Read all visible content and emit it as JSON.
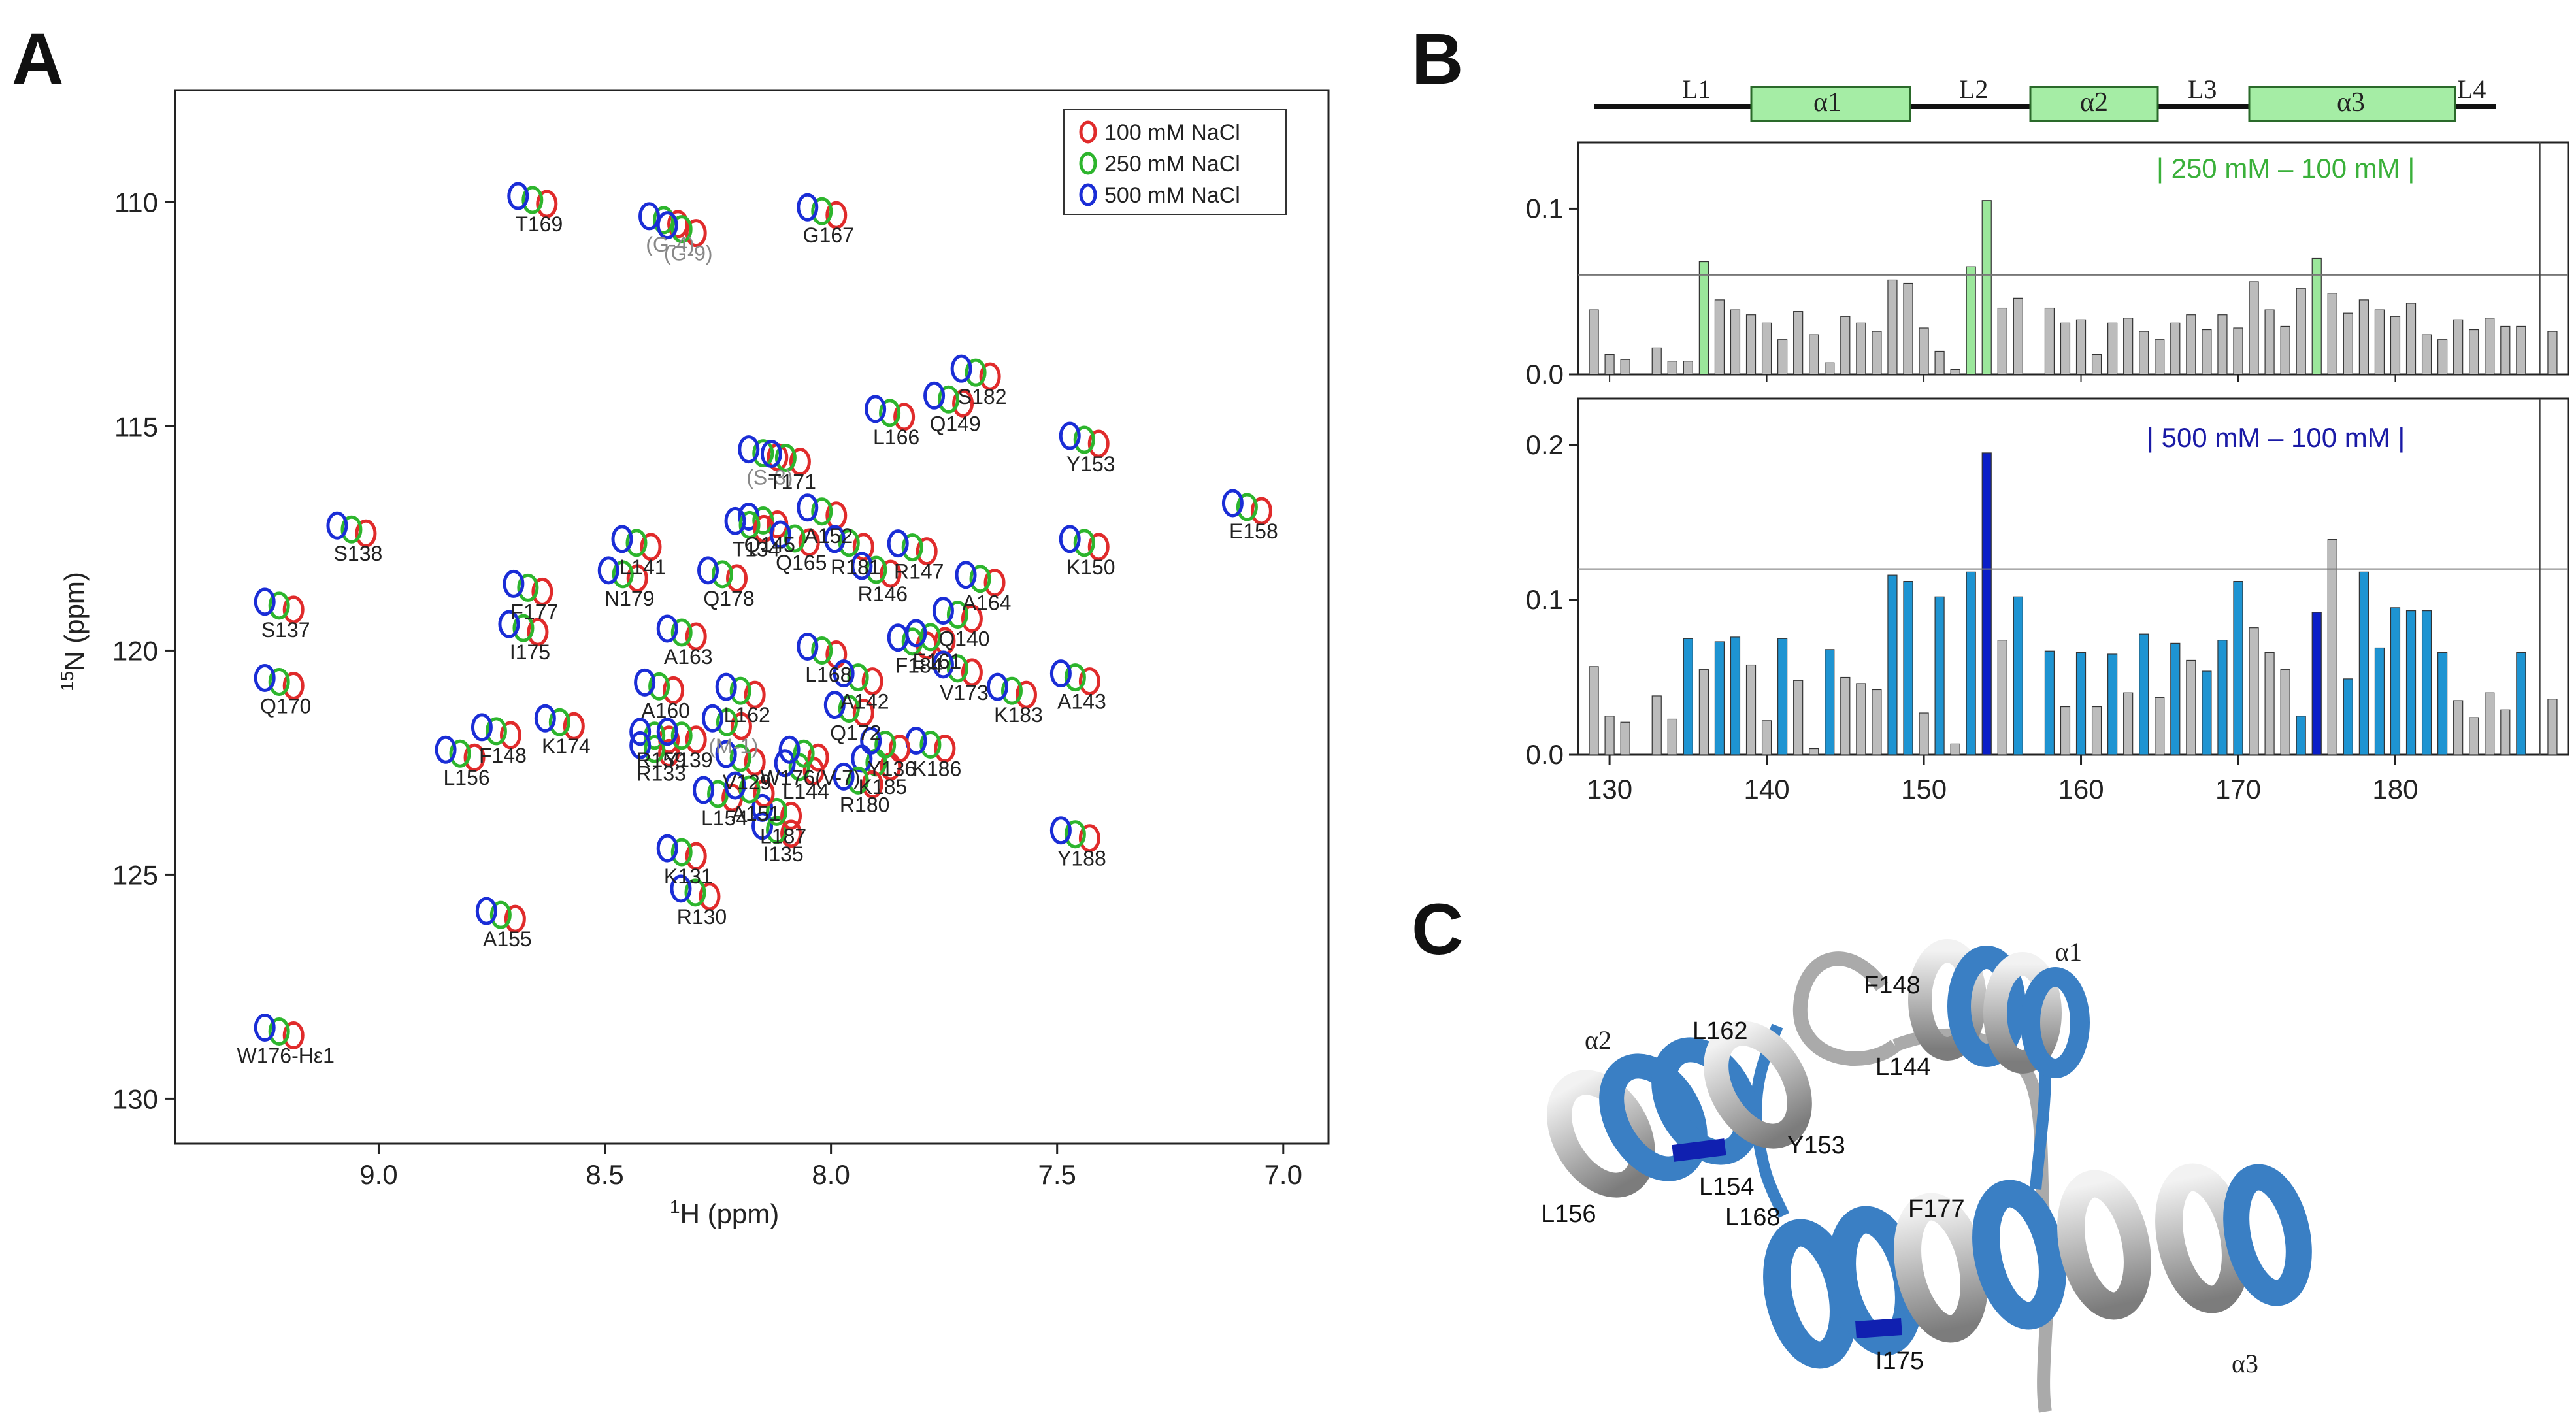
{
  "panels": {
    "a": "A",
    "b": "B",
    "c": "C"
  },
  "chart_data": [
    {
      "type": "scatter",
      "title": "",
      "xlabel_iso": "1",
      "xlabel": "H  (ppm)",
      "ylabel_iso": "15",
      "ylabel": "N  (ppm)",
      "xlim": [
        9.45,
        6.9
      ],
      "ylim": [
        131.0,
        107.5
      ],
      "xticks": [
        "9.0",
        "8.5",
        "8.0",
        "7.5",
        "7.0"
      ],
      "yticks": [
        "110",
        "115",
        "120",
        "125",
        "130"
      ],
      "legend": [
        "100 mM NaCl",
        "250 mM NaCl",
        "500 mM NaCl"
      ],
      "colors": {
        "100": "#e02b2b",
        "250": "#2db52d",
        "500": "#1a2dd6"
      },
      "peaks": [
        {
          "l": "T169",
          "x": 8.66,
          "y": 109.95
        },
        {
          "l": "(G-4)",
          "x": 8.37,
          "y": 110.4,
          "g": true
        },
        {
          "l": "(G-9)",
          "x": 8.33,
          "y": 110.6,
          "g": true
        },
        {
          "l": "G167",
          "x": 8.02,
          "y": 110.2
        },
        {
          "l": "L166",
          "x": 7.87,
          "y": 114.7
        },
        {
          "l": "S182",
          "x": 7.68,
          "y": 113.8
        },
        {
          "l": "Q149",
          "x": 7.74,
          "y": 114.4
        },
        {
          "l": "Y153",
          "x": 7.44,
          "y": 115.3
        },
        {
          "l": "(S-3)",
          "x": 8.15,
          "y": 115.6,
          "g": true
        },
        {
          "l": "T171",
          "x": 8.1,
          "y": 115.7
        },
        {
          "l": "S138",
          "x": 9.06,
          "y": 117.3
        },
        {
          "l": "E158",
          "x": 7.08,
          "y": 116.8
        },
        {
          "l": "L141",
          "x": 8.43,
          "y": 117.6
        },
        {
          "l": "Q145",
          "x": 8.15,
          "y": 117.1
        },
        {
          "l": "T134",
          "x": 8.18,
          "y": 117.2
        },
        {
          "l": "A152",
          "x": 8.02,
          "y": 116.9
        },
        {
          "l": "R181",
          "x": 7.96,
          "y": 117.6
        },
        {
          "l": "R147",
          "x": 7.82,
          "y": 117.7
        },
        {
          "l": "N179",
          "x": 8.46,
          "y": 118.3
        },
        {
          "l": "Q178",
          "x": 8.24,
          "y": 118.3
        },
        {
          "l": "Q165",
          "x": 8.08,
          "y": 117.5
        },
        {
          "l": "R146",
          "x": 7.9,
          "y": 118.2
        },
        {
          "l": "A164",
          "x": 7.67,
          "y": 118.4
        },
        {
          "l": "K150",
          "x": 7.44,
          "y": 117.6
        },
        {
          "l": "F177",
          "x": 8.67,
          "y": 118.6
        },
        {
          "l": "S137",
          "x": 9.22,
          "y": 119.0
        },
        {
          "l": "I175",
          "x": 8.68,
          "y": 119.5
        },
        {
          "l": "A163",
          "x": 8.33,
          "y": 119.6
        },
        {
          "l": "L168",
          "x": 8.02,
          "y": 120.0
        },
        {
          "l": "F184",
          "x": 7.82,
          "y": 119.8
        },
        {
          "l": "Q140",
          "x": 7.72,
          "y": 119.2
        },
        {
          "l": "E161",
          "x": 7.78,
          "y": 119.7
        },
        {
          "l": "Q170",
          "x": 9.22,
          "y": 120.7
        },
        {
          "l": "A160",
          "x": 8.38,
          "y": 120.8
        },
        {
          "l": "L162",
          "x": 8.2,
          "y": 120.9
        },
        {
          "l": "A142",
          "x": 7.94,
          "y": 120.6
        },
        {
          "l": "V173",
          "x": 7.72,
          "y": 120.4
        },
        {
          "l": "A143",
          "x": 7.46,
          "y": 120.6
        },
        {
          "l": "K174",
          "x": 8.6,
          "y": 121.6
        },
        {
          "l": "(M-1)",
          "x": 8.23,
          "y": 121.6,
          "g": true
        },
        {
          "l": "Q172",
          "x": 7.96,
          "y": 121.3
        },
        {
          "l": "K183",
          "x": 7.6,
          "y": 120.9
        },
        {
          "l": "F148",
          "x": 8.74,
          "y": 121.8
        },
        {
          "l": "R159",
          "x": 8.39,
          "y": 121.9
        },
        {
          "l": "K186",
          "x": 7.78,
          "y": 122.1
        },
        {
          "l": "R133",
          "x": 8.39,
          "y": 122.2
        },
        {
          "l": "Y139",
          "x": 8.33,
          "y": 121.9
        },
        {
          "l": "V129",
          "x": 8.2,
          "y": 122.4
        },
        {
          "l": "K185",
          "x": 7.9,
          "y": 122.5
        },
        {
          "l": "L156",
          "x": 8.82,
          "y": 122.3
        },
        {
          "l": "Y136",
          "x": 7.88,
          "y": 122.1
        },
        {
          "l": "L154",
          "x": 8.25,
          "y": 123.2
        },
        {
          "l": "R180",
          "x": 7.94,
          "y": 122.9
        },
        {
          "l": "K131",
          "x": 8.33,
          "y": 124.5
        },
        {
          "l": "L144",
          "x": 8.07,
          "y": 122.6
        },
        {
          "l": "I135",
          "x": 8.12,
          "y": 124.0
        },
        {
          "l": "Y188",
          "x": 7.46,
          "y": 124.1
        },
        {
          "l": "W176(V-7)",
          "x": 8.06,
          "y": 122.3
        },
        {
          "l": "L187",
          "x": 8.12,
          "y": 123.6
        },
        {
          "l": "R130",
          "x": 8.3,
          "y": 125.4
        },
        {
          "l": "A151",
          "x": 8.18,
          "y": 123.1
        },
        {
          "l": "A155",
          "x": 8.73,
          "y": 125.9
        },
        {
          "l": "W176-Hε1",
          "x": 9.22,
          "y": 128.5
        }
      ]
    },
    {
      "type": "bar",
      "title": "| 250 mM – 100 mM |",
      "xlim": [
        128,
        191
      ],
      "ylim": [
        0,
        0.14
      ],
      "yticks": [
        "0.1",
        "0.0"
      ],
      "threshold": 0.06,
      "x": [
        129,
        130,
        131,
        133,
        134,
        135,
        136,
        137,
        138,
        139,
        140,
        141,
        142,
        143,
        144,
        145,
        146,
        147,
        148,
        149,
        150,
        151,
        152,
        153,
        154,
        155,
        156,
        158,
        159,
        160,
        161,
        162,
        163,
        164,
        165,
        166,
        167,
        168,
        169,
        170,
        171,
        172,
        173,
        174,
        175,
        176,
        177,
        178,
        179,
        180,
        181,
        182,
        183,
        184,
        185,
        186,
        187,
        188,
        190
      ],
      "values": [
        0.039,
        0.012,
        0.009,
        0.016,
        0.008,
        0.008,
        0.068,
        0.045,
        0.039,
        0.036,
        0.031,
        0.021,
        0.038,
        0.024,
        0.007,
        0.035,
        0.031,
        0.026,
        0.057,
        0.055,
        0.028,
        0.014,
        0.003,
        0.065,
        0.105,
        0.04,
        0.046,
        0.04,
        0.031,
        0.033,
        0.012,
        0.031,
        0.034,
        0.026,
        0.021,
        0.031,
        0.036,
        0.027,
        0.036,
        0.028,
        0.056,
        0.039,
        0.029,
        0.052,
        0.07,
        0.049,
        0.037,
        0.045,
        0.039,
        0.035,
        0.043,
        0.024,
        0.021,
        0.033,
        0.027,
        0.034,
        0.029,
        0.029,
        0.026
      ],
      "highlight": [
        136,
        153,
        154,
        175
      ]
    },
    {
      "type": "bar",
      "title": "| 500 mM – 100 mM |",
      "xlim": [
        128,
        191
      ],
      "ylim": [
        0,
        0.23
      ],
      "xticks": [
        "130",
        "140",
        "150",
        "160",
        "170",
        "180"
      ],
      "yticks": [
        "0.2",
        "0.1",
        "0.0"
      ],
      "threshold": 0.12,
      "x": [
        129,
        130,
        131,
        133,
        134,
        135,
        136,
        137,
        138,
        139,
        140,
        141,
        142,
        143,
        144,
        145,
        146,
        147,
        148,
        149,
        150,
        151,
        152,
        153,
        154,
        155,
        156,
        158,
        159,
        160,
        161,
        162,
        163,
        164,
        165,
        166,
        167,
        168,
        169,
        170,
        171,
        172,
        173,
        174,
        175,
        176,
        177,
        178,
        179,
        180,
        181,
        182,
        183,
        184,
        185,
        186,
        187,
        188,
        190
      ],
      "values": [
        0.057,
        0.025,
        0.021,
        0.038,
        0.023,
        0.075,
        0.055,
        0.073,
        0.076,
        0.058,
        0.022,
        0.075,
        0.048,
        0.004,
        0.068,
        0.05,
        0.046,
        0.042,
        0.116,
        0.112,
        0.027,
        0.102,
        0.007,
        0.118,
        0.195,
        0.074,
        0.102,
        0.067,
        0.031,
        0.066,
        0.031,
        0.065,
        0.04,
        0.078,
        0.037,
        0.072,
        0.061,
        0.054,
        0.074,
        0.112,
        0.082,
        0.066,
        0.055,
        0.025,
        0.092,
        0.139,
        0.049,
        0.118,
        0.069,
        0.095,
        0.093,
        0.093,
        0.066,
        0.035,
        0.024,
        0.04,
        0.029,
        0.066,
        0.036
      ],
      "dark": [
        154,
        175
      ],
      "blue": [
        135,
        137,
        138,
        141,
        144,
        148,
        149,
        151,
        153,
        154,
        156,
        158,
        160,
        162,
        164,
        166,
        168,
        169,
        170,
        174,
        175,
        177,
        178,
        179,
        180,
        181,
        182,
        183,
        188
      ],
      "secondary_structure": {
        "loops": [
          "L1",
          "L2",
          "L3",
          "L4"
        ],
        "helices": [
          "α1",
          "α2",
          "α3"
        ]
      }
    }
  ],
  "structure": {
    "helix_labels": [
      "α1",
      "α2",
      "α3"
    ],
    "residue_labels": [
      "F148",
      "L144",
      "L162",
      "Y153",
      "L154",
      "L156",
      "L168",
      "F177",
      "I175"
    ]
  }
}
